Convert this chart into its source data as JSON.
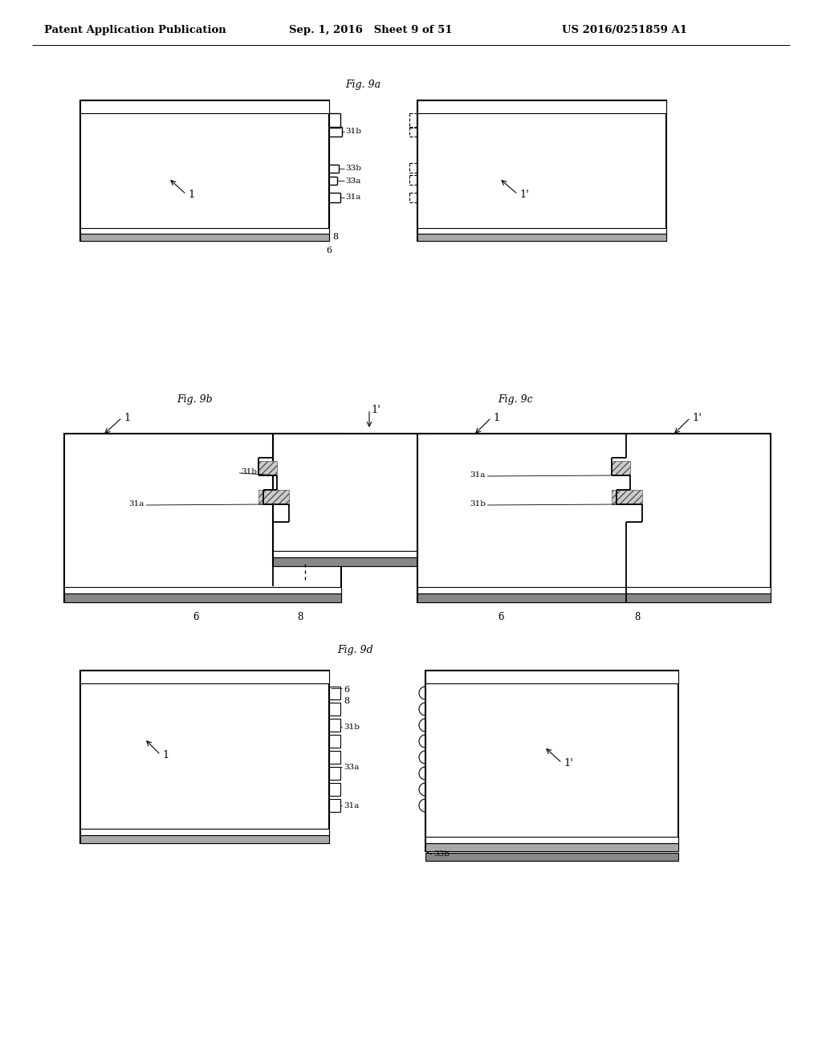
{
  "title_left": "Patent Application Publication",
  "title_center": "Sep. 1, 2016   Sheet 9 of 51",
  "title_right": "US 2016/0251859 A1",
  "bg_color": "#ffffff",
  "line_color": "#000000"
}
